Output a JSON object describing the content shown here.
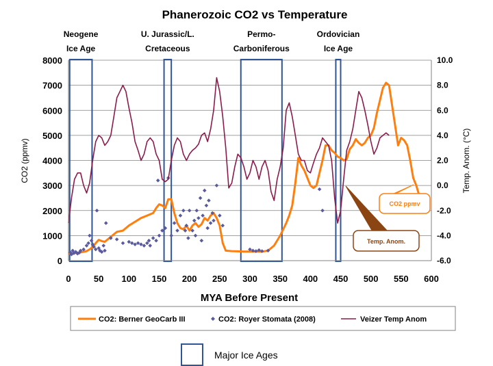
{
  "chart_data": {
    "type": "line",
    "title": "Phanerozoic CO2 vs Temperature",
    "xlabel": "MYA Before Present",
    "ylabel": "CO2 (ppmv)",
    "y2label": "Temp. Anom. (°C)",
    "xlim": [
      0,
      600
    ],
    "ylim": [
      0,
      8000
    ],
    "y2lim": [
      -6,
      10
    ],
    "x_ticks": [
      "0",
      "50",
      "100",
      "150",
      "200",
      "250",
      "300",
      "350",
      "400",
      "450",
      "500",
      "550",
      "600"
    ],
    "y_ticks": [
      "0",
      "1000",
      "2000",
      "3000",
      "4000",
      "5000",
      "6000",
      "7000",
      "8000"
    ],
    "y2_ticks": [
      "-6.0",
      "-4.0",
      "-2.0",
      "0.0",
      "2.0",
      "4.0",
      "6.0",
      "8.0",
      "10.0"
    ],
    "grid": true,
    "legend_position": "bottom",
    "ice_ages": [
      {
        "label_lines": [
          "Neogene",
          "Ice Age"
        ],
        "x_start": 2,
        "x_end": 39
      },
      {
        "label_lines": [
          "U. Jurassic/L.",
          "Cretaceous"
        ],
        "x_start": 158,
        "x_end": 170
      },
      {
        "label_lines": [
          "Permo-",
          "Carboniferous"
        ],
        "x_start": 285,
        "x_end": 353
      },
      {
        "label_lines": [
          "Ordovician",
          "Ice Age"
        ],
        "x_start": 442,
        "x_end": 450
      }
    ],
    "series": [
      {
        "name": "CO2: Berner GeoCarb III",
        "axis": "left",
        "color": "#FF7F0E",
        "style": "line",
        "points": [
          [
            0,
            280
          ],
          [
            10,
            300
          ],
          [
            20,
            330
          ],
          [
            30,
            380
          ],
          [
            35,
            450
          ],
          [
            40,
            550
          ],
          [
            45,
            700
          ],
          [
            50,
            830
          ],
          [
            55,
            780
          ],
          [
            60,
            750
          ],
          [
            70,
            950
          ],
          [
            80,
            1150
          ],
          [
            90,
            1200
          ],
          [
            100,
            1400
          ],
          [
            110,
            1550
          ],
          [
            120,
            1700
          ],
          [
            130,
            1800
          ],
          [
            140,
            1900
          ],
          [
            145,
            2100
          ],
          [
            150,
            2250
          ],
          [
            155,
            2200
          ],
          [
            160,
            2100
          ],
          [
            165,
            2450
          ],
          [
            170,
            2450
          ],
          [
            175,
            1900
          ],
          [
            180,
            1500
          ],
          [
            185,
            1300
          ],
          [
            190,
            1250
          ],
          [
            195,
            1400
          ],
          [
            200,
            1200
          ],
          [
            205,
            1400
          ],
          [
            210,
            1500
          ],
          [
            215,
            1350
          ],
          [
            220,
            1450
          ],
          [
            225,
            1700
          ],
          [
            230,
            1600
          ],
          [
            235,
            1800
          ],
          [
            240,
            1900
          ],
          [
            245,
            1700
          ],
          [
            250,
            1400
          ],
          [
            255,
            700
          ],
          [
            260,
            400
          ],
          [
            270,
            380
          ],
          [
            280,
            370
          ],
          [
            290,
            360
          ],
          [
            300,
            360
          ],
          [
            310,
            360
          ],
          [
            320,
            360
          ],
          [
            330,
            400
          ],
          [
            340,
            600
          ],
          [
            350,
            1000
          ],
          [
            360,
            1500
          ],
          [
            365,
            1800
          ],
          [
            370,
            2200
          ],
          [
            375,
            3100
          ],
          [
            380,
            4100
          ],
          [
            385,
            3800
          ],
          [
            390,
            3600
          ],
          [
            395,
            3300
          ],
          [
            400,
            3000
          ],
          [
            405,
            2900
          ],
          [
            410,
            3000
          ],
          [
            415,
            3500
          ],
          [
            420,
            4000
          ],
          [
            425,
            4600
          ],
          [
            430,
            4600
          ],
          [
            435,
            4400
          ],
          [
            440,
            4300
          ],
          [
            445,
            4150
          ],
          [
            450,
            4100
          ],
          [
            455,
            4000
          ],
          [
            460,
            4050
          ],
          [
            465,
            4450
          ],
          [
            470,
            4600
          ],
          [
            475,
            4850
          ],
          [
            480,
            4700
          ],
          [
            485,
            4600
          ],
          [
            490,
            4700
          ],
          [
            495,
            4900
          ],
          [
            500,
            5000
          ],
          [
            505,
            5300
          ],
          [
            510,
            5900
          ],
          [
            515,
            6400
          ],
          [
            520,
            6900
          ],
          [
            525,
            7100
          ],
          [
            530,
            7000
          ],
          [
            535,
            6200
          ],
          [
            540,
            5400
          ],
          [
            545,
            4600
          ],
          [
            550,
            4900
          ],
          [
            555,
            4800
          ],
          [
            560,
            4600
          ],
          [
            565,
            4000
          ],
          [
            570,
            3300
          ],
          [
            575,
            3000
          ],
          [
            580,
            2600
          ],
          [
            585,
            2300
          ],
          [
            590,
            2100
          ]
        ]
      },
      {
        "name": "CO2: Royer Stomata (2008)",
        "axis": "left",
        "color": "#5A5A9E",
        "style": "scatter",
        "points": [
          [
            3,
            330
          ],
          [
            5,
            250
          ],
          [
            7,
            400
          ],
          [
            9,
            300
          ],
          [
            12,
            350
          ],
          [
            15,
            280
          ],
          [
            18,
            320
          ],
          [
            20,
            400
          ],
          [
            25,
            450
          ],
          [
            30,
            600
          ],
          [
            33,
            700
          ],
          [
            35,
            1000
          ],
          [
            38,
            800
          ],
          [
            40,
            650
          ],
          [
            42,
            550
          ],
          [
            45,
            450
          ],
          [
            47,
            2000
          ],
          [
            50,
            500
          ],
          [
            52,
            400
          ],
          [
            55,
            350
          ],
          [
            58,
            600
          ],
          [
            60,
            400
          ],
          [
            62,
            1500
          ],
          [
            70,
            900
          ],
          [
            80,
            850
          ],
          [
            90,
            700
          ],
          [
            100,
            750
          ],
          [
            105,
            700
          ],
          [
            110,
            650
          ],
          [
            115,
            700
          ],
          [
            120,
            650
          ],
          [
            125,
            600
          ],
          [
            130,
            700
          ],
          [
            133,
            800
          ],
          [
            135,
            600
          ],
          [
            140,
            900
          ],
          [
            145,
            800
          ],
          [
            148,
            3200
          ],
          [
            150,
            1000
          ],
          [
            155,
            1200
          ],
          [
            160,
            1300
          ],
          [
            165,
            3300
          ],
          [
            170,
            1000
          ],
          [
            175,
            1500
          ],
          [
            180,
            1200
          ],
          [
            185,
            1800
          ],
          [
            190,
            2000
          ],
          [
            193,
            1200
          ],
          [
            195,
            1400
          ],
          [
            198,
            900
          ],
          [
            200,
            2000
          ],
          [
            205,
            1200
          ],
          [
            208,
            1600
          ],
          [
            210,
            1000
          ],
          [
            212,
            2000
          ],
          [
            215,
            1700
          ],
          [
            218,
            2500
          ],
          [
            220,
            800
          ],
          [
            222,
            1800
          ],
          [
            225,
            2800
          ],
          [
            228,
            2200
          ],
          [
            230,
            1300
          ],
          [
            232,
            2400
          ],
          [
            235,
            1500
          ],
          [
            238,
            1900
          ],
          [
            240,
            1600
          ],
          [
            245,
            3000
          ],
          [
            250,
            1800
          ],
          [
            255,
            1400
          ],
          [
            300,
            450
          ],
          [
            305,
            400
          ],
          [
            310,
            380
          ],
          [
            315,
            420
          ],
          [
            320,
            380
          ],
          [
            330,
            400
          ],
          [
            415,
            2850
          ],
          [
            420,
            2000
          ]
        ]
      },
      {
        "name": "Veizer Temp Anom",
        "axis": "right",
        "color": "#8B1A4B",
        "style": "line",
        "points": [
          [
            0,
            -3.0
          ],
          [
            5,
            -1.0
          ],
          [
            10,
            0.5
          ],
          [
            15,
            1.0
          ],
          [
            20,
            1.0
          ],
          [
            25,
            0.0
          ],
          [
            30,
            -0.6
          ],
          [
            35,
            0.2
          ],
          [
            40,
            2.0
          ],
          [
            45,
            3.5
          ],
          [
            50,
            4.0
          ],
          [
            55,
            3.8
          ],
          [
            60,
            3.2
          ],
          [
            65,
            3.5
          ],
          [
            70,
            4.0
          ],
          [
            75,
            5.5
          ],
          [
            80,
            7.0
          ],
          [
            85,
            7.5
          ],
          [
            90,
            8.0
          ],
          [
            95,
            7.5
          ],
          [
            100,
            6.2
          ],
          [
            105,
            5.0
          ],
          [
            110,
            3.5
          ],
          [
            115,
            2.8
          ],
          [
            120,
            2.0
          ],
          [
            125,
            2.5
          ],
          [
            130,
            3.5
          ],
          [
            135,
            3.8
          ],
          [
            140,
            3.5
          ],
          [
            145,
            2.5
          ],
          [
            150,
            2.0
          ],
          [
            155,
            0.5
          ],
          [
            160,
            0.3
          ],
          [
            165,
            0.5
          ],
          [
            170,
            2.0
          ],
          [
            175,
            3.2
          ],
          [
            180,
            3.8
          ],
          [
            185,
            3.5
          ],
          [
            190,
            2.5
          ],
          [
            195,
            2.0
          ],
          [
            200,
            2.5
          ],
          [
            205,
            2.8
          ],
          [
            210,
            3.0
          ],
          [
            215,
            3.3
          ],
          [
            220,
            4.0
          ],
          [
            225,
            4.2
          ],
          [
            230,
            3.5
          ],
          [
            235,
            4.5
          ],
          [
            240,
            6.0
          ],
          [
            245,
            8.6
          ],
          [
            250,
            7.5
          ],
          [
            255,
            5.5
          ],
          [
            260,
            3.0
          ],
          [
            265,
            -0.2
          ],
          [
            270,
            0.2
          ],
          [
            275,
            1.5
          ],
          [
            280,
            2.5
          ],
          [
            285,
            2.2
          ],
          [
            290,
            1.5
          ],
          [
            295,
            0.5
          ],
          [
            300,
            1.0
          ],
          [
            305,
            2.0
          ],
          [
            310,
            1.5
          ],
          [
            315,
            0.5
          ],
          [
            320,
            1.5
          ],
          [
            325,
            2.0
          ],
          [
            330,
            1.2
          ],
          [
            335,
            -0.5
          ],
          [
            340,
            -1.2
          ],
          [
            345,
            0.5
          ],
          [
            350,
            1.5
          ],
          [
            355,
            3.0
          ],
          [
            360,
            6.0
          ],
          [
            365,
            6.6
          ],
          [
            370,
            5.5
          ],
          [
            375,
            4.0
          ],
          [
            380,
            2.5
          ],
          [
            385,
            2.0
          ],
          [
            390,
            2.0
          ],
          [
            395,
            1.2
          ],
          [
            400,
            1.0
          ],
          [
            405,
            1.8
          ],
          [
            410,
            2.5
          ],
          [
            415,
            3.0
          ],
          [
            420,
            3.8
          ],
          [
            425,
            3.5
          ],
          [
            430,
            3.2
          ],
          [
            435,
            2.0
          ],
          [
            440,
            -1.0
          ],
          [
            445,
            -3.0
          ],
          [
            450,
            -2.0
          ],
          [
            455,
            0.5
          ],
          [
            460,
            2.8
          ],
          [
            465,
            3.5
          ],
          [
            470,
            4.5
          ],
          [
            475,
            6.0
          ],
          [
            480,
            7.5
          ],
          [
            485,
            7.0
          ],
          [
            490,
            6.0
          ],
          [
            495,
            4.8
          ],
          [
            500,
            3.5
          ],
          [
            505,
            2.5
          ],
          [
            510,
            3.0
          ],
          [
            515,
            3.8
          ],
          [
            520,
            4.0
          ],
          [
            525,
            4.2
          ],
          [
            530,
            4.0
          ]
        ]
      }
    ],
    "callouts": [
      {
        "text": "CO2 ppmv",
        "color": "#FF7F0E"
      },
      {
        "text": "Temp. Anom.",
        "color": "#8B4513"
      }
    ],
    "legend_entries": [
      {
        "label": "CO2: Berner GeoCarb III",
        "marker": "line",
        "color": "#FF7F0E"
      },
      {
        "label": "CO2: Royer Stomata (2008)",
        "marker": "diamond",
        "color": "#5A5A9E"
      },
      {
        "label": "Veizer Temp Anom",
        "marker": "line",
        "color": "#8B1A4B"
      }
    ],
    "extra_legend": {
      "label": "Major Ice Ages",
      "color": "#2F5597"
    }
  }
}
